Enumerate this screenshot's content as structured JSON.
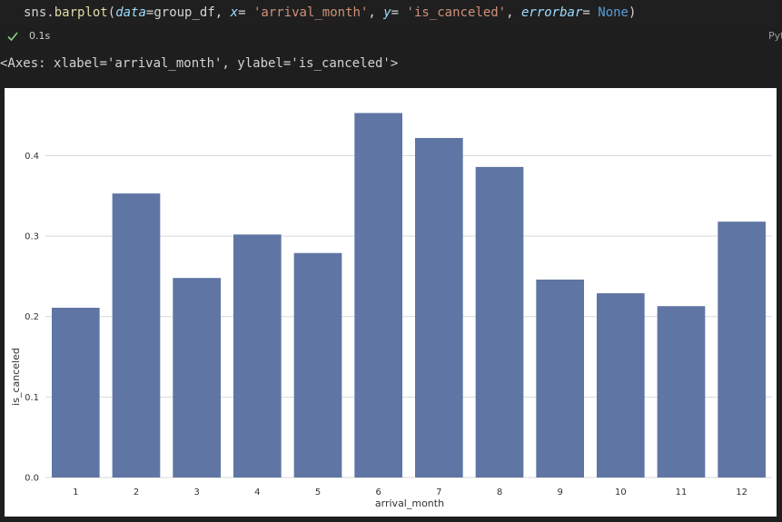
{
  "code": {
    "module": "sns",
    "function": "barplot",
    "arg_data_name": "data",
    "arg_data_value": "group_df",
    "arg_x_name": "x",
    "arg_x_value": "'arrival_month'",
    "arg_y_name": "y",
    "arg_y_value": "'is_canceled'",
    "arg_errorbar_name": "errorbar",
    "arg_errorbar_value": "None"
  },
  "status": {
    "exec_time": "0.1s",
    "kernel_label": "Pyt",
    "success_icon": "check-icon"
  },
  "output": {
    "repr_text": "<Axes: xlabel='arrival_month', ylabel='is_canceled'>"
  },
  "colors": {
    "bar": "#5f75a3",
    "grid": "#d9d9d9",
    "axis_text": "#333333",
    "success": "#89d185"
  },
  "chart_data": {
    "type": "bar",
    "categories": [
      "1",
      "2",
      "3",
      "4",
      "5",
      "6",
      "7",
      "8",
      "9",
      "10",
      "11",
      "12"
    ],
    "values": [
      0.211,
      0.353,
      0.248,
      0.302,
      0.279,
      0.453,
      0.422,
      0.386,
      0.246,
      0.229,
      0.213,
      0.318
    ],
    "title": "",
    "xlabel": "arrival_month",
    "ylabel": "is_canceled",
    "ylim": [
      0,
      0.475
    ],
    "yticks": [
      "0.0",
      "0.1",
      "0.2",
      "0.3",
      "0.4"
    ],
    "grid": "horizontal",
    "legend": "none"
  }
}
